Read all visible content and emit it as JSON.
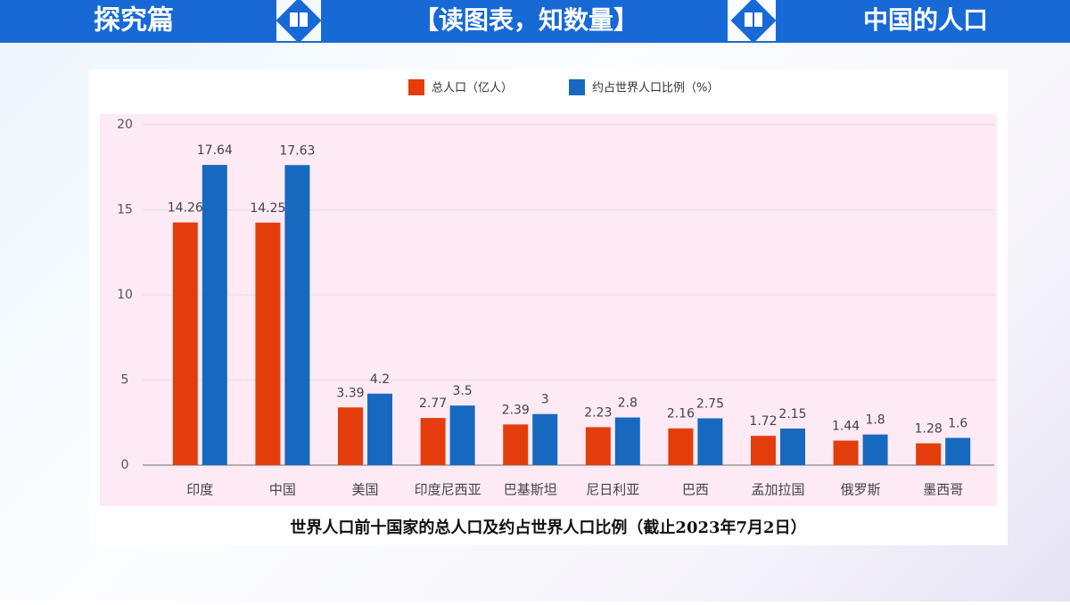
{
  "header": {
    "left": "探究篇",
    "middle": "【读图表，知数量】",
    "right": "中国的人口"
  },
  "chart_data": {
    "type": "bar",
    "title": "世界人口前十国家的总人口及约占世界人口比例（截止2023年7月2日）",
    "categories": [
      "印度",
      "中国",
      "美国",
      "印度尼西亚",
      "巴基斯坦",
      "尼日利亚",
      "巴西",
      "孟加拉国",
      "俄罗斯",
      "墨西哥"
    ],
    "series": [
      {
        "name": "总人口（亿人）",
        "color": "#e43d0c",
        "values": [
          14.26,
          14.25,
          3.39,
          2.77,
          2.39,
          2.23,
          2.16,
          1.72,
          1.44,
          1.28
        ]
      },
      {
        "name": "约占世界人口比例（%）",
        "color": "#1769c0",
        "values": [
          17.64,
          17.63,
          4.2,
          3.5,
          3,
          2.8,
          2.75,
          2.15,
          1.8,
          1.6
        ]
      }
    ],
    "ylim": [
      0,
      20
    ],
    "yticks": [
      0,
      5,
      10,
      15,
      20
    ],
    "grid": true
  }
}
